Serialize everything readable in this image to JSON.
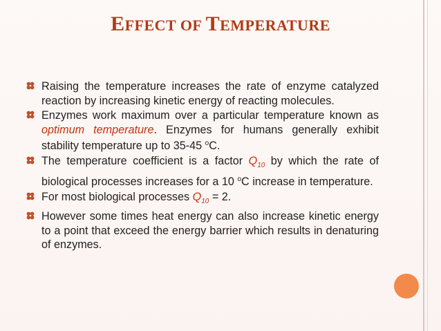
{
  "slide": {
    "title_first_letter_1": "E",
    "title_rest_1": "FFECT OF ",
    "title_first_letter_2": "T",
    "title_rest_2": "EMPERATURE"
  },
  "bullets": [
    {
      "text": "Raising the temperature increases the rate of enzyme catalyzed reaction by increasing kinetic energy of reacting molecules."
    },
    {
      "before": "Enzymes work maximum over a particular temperature known as ",
      "highlight": "optimum temperature",
      "after": ". Enzymes for humans generally exhibit stability temperature up to 35-45 ",
      "sup": "o",
      "end": "C."
    },
    {
      "before": "The temperature coefficient is a factor ",
      "q": "Q",
      "sub": "10",
      "mid": " by which the rate of biological processes increases for a 10 ",
      "sup": "o",
      "end": "C increase in temperature."
    },
    {
      "before": "For most biological processes ",
      "q": "Q",
      "sub": "10",
      "end": " = 2."
    },
    {
      "text": "However some times heat energy can also increase kinetic energy to a point that exceed the energy barrier which results in denaturing of enzymes."
    }
  ],
  "colors": {
    "title": "#b33a14",
    "highlight": "#c4330d",
    "bullet_icon": "#c0502a",
    "accent_circle": "#f18a4a"
  },
  "icons": {
    "bullet": "four-petal-bullet-icon",
    "decoration": "orange-circle"
  }
}
